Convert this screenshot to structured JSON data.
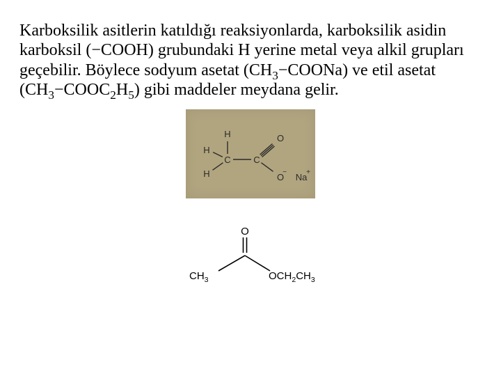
{
  "paragraph": {
    "segments": [
      {
        "t": "plain",
        "v": "Karboksilik asitlerin katıldığı reaksiyonlarda, karboksilik asidin karboksil (−COOH) grubundaki H yerine metal veya alkil grupları geçebilir. Böylece sodyum asetat (CH"
      },
      {
        "t": "sub",
        "v": "3"
      },
      {
        "t": "plain",
        "v": "−COONa) ve etil asetat (CH"
      },
      {
        "t": "sub",
        "v": "3"
      },
      {
        "t": "plain",
        "v": "−COOC"
      },
      {
        "t": "sub",
        "v": "2"
      },
      {
        "t": "plain",
        "v": "H"
      },
      {
        "t": "sub",
        "v": "5"
      },
      {
        "t": "plain",
        "v": ") gibi maddeler meydana gelir."
      }
    ]
  },
  "figure1": {
    "type": "chemical-structure",
    "name": "sodium-acetate",
    "background_color": "#b1a580",
    "bond_color": "#2b2b28",
    "label_color": "#2b2b28",
    "label_fontsize": 13,
    "labels": {
      "h1": "H",
      "h2": "H",
      "h3": "H",
      "c1": "C",
      "c2": "C",
      "o1": "O",
      "o2": "O",
      "minus": "−",
      "na": "Na",
      "plus": "+"
    }
  },
  "figure2": {
    "type": "chemical-structure",
    "name": "ethyl-acetate",
    "background_color": "#ffffff",
    "bond_color": "#000000",
    "label_color": "#000000",
    "label_fontsize": 15,
    "labels": {
      "o1": "O",
      "left": "CH",
      "left_sub": "3",
      "right": "OCH",
      "right_sub1": "2",
      "right2": "CH",
      "right_sub2": "3"
    }
  }
}
